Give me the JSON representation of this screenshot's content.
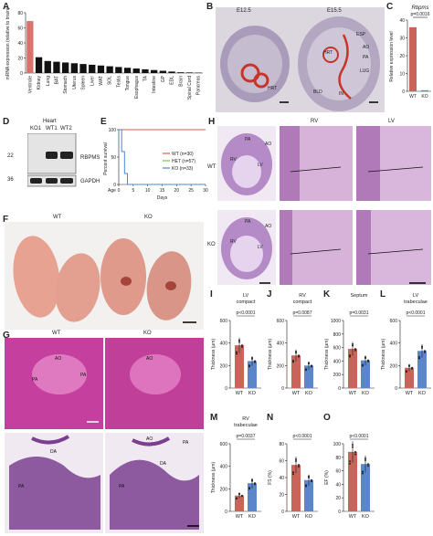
{
  "panels": {
    "A": "A",
    "B": "B",
    "C": "C",
    "D": "D",
    "E": "E",
    "F": "F",
    "G": "G",
    "H": "H",
    "I": "I",
    "J": "J",
    "K": "K",
    "L": "L",
    "M": "M",
    "N": "N",
    "O": "O"
  },
  "panelA": {
    "ylabel": "mRNA expression (relative to brain)",
    "yticks": [
      "0",
      "20",
      "40",
      "60",
      "80"
    ],
    "chart_data": {
      "type": "bar",
      "categories": [
        "Ventricle",
        "Kidney",
        "Lung",
        "BAT",
        "Stomach",
        "Uterus",
        "Spleen",
        "Liver",
        "WAT",
        "SOL",
        "Testis",
        "Tongue",
        "Esophagus",
        "TA",
        "Intestine",
        "GP",
        "EDL",
        "Brain",
        "Spinal Cord",
        "Pancreas"
      ],
      "values": [
        69,
        21,
        16,
        15,
        14,
        13,
        12,
        11,
        10,
        9,
        8,
        7,
        6,
        5,
        4,
        3,
        2,
        1,
        0.8,
        0.5
      ],
      "ylim": [
        0,
        80
      ],
      "highlight_color": "#d9726a",
      "bar_color": "#111111"
    }
  },
  "panelB": {
    "e125": "E12.5",
    "e155": "E15.5",
    "labels": [
      "ESP",
      "AO",
      "HRT",
      "PA",
      "LUG",
      "BLD",
      "IN",
      "HRT"
    ]
  },
  "panelC": {
    "title": "Rbpms",
    "pval": "p=0.0016",
    "ylabel": "Relative expression level",
    "yticks": [
      "0",
      "10",
      "20",
      "30",
      "40"
    ],
    "chart_data": {
      "type": "bar",
      "categories": [
        "WT",
        "KO"
      ],
      "values": [
        36,
        0.6
      ],
      "ylim": [
        0,
        40
      ]
    }
  },
  "panelD": {
    "header": "Heart",
    "lanes": [
      "KO1",
      "WT1",
      "WT2"
    ],
    "mw": [
      "22",
      "36"
    ],
    "bands": [
      "RBPMS",
      "GAPDH"
    ]
  },
  "panelE": {
    "ylabel": "Percent survival",
    "xlabel": "Days",
    "age": "Age",
    "xticks": [
      "0",
      "5",
      "10",
      "15",
      "20",
      "25",
      "30"
    ],
    "yticks": [
      "0",
      "50",
      "100"
    ],
    "legend": [
      "WT (n=30)",
      "HET (n=57)",
      "KO (n=33)"
    ],
    "chart_data": {
      "type": "line",
      "x_range": [
        0,
        30
      ],
      "ylim": [
        0,
        100
      ],
      "series": [
        {
          "name": "WT (n=30)",
          "color": "#e05a4a"
        },
        {
          "name": "HET (n=57)",
          "color": "#77c35a"
        },
        {
          "name": "KO (n=33)",
          "color": "#4b86d6"
        }
      ]
    }
  },
  "panelF": {
    "wt": "WT",
    "ko": "KO"
  },
  "panelG": {
    "wt": "WT",
    "ko": "KO",
    "labels": [
      "AO",
      "PA",
      "PA",
      "AO",
      "DA",
      "PA",
      "AO",
      "PA",
      "DA",
      "PA"
    ]
  },
  "panelH": {
    "rv": "RV",
    "lv": "LV",
    "wt": "WT",
    "ko": "KO",
    "labels": [
      "PA",
      "AO",
      "RV",
      "LV",
      "PA",
      "AO",
      "RV",
      "LV"
    ]
  },
  "bars": [
    {
      "id": "I",
      "title": "LV compact",
      "pval": "p<0.0001",
      "yticks": [
        "0",
        "200",
        "400",
        "600"
      ],
      "ylabel": "Thickness (μm)",
      "chart_data": {
        "type": "bar",
        "categories": [
          "WT",
          "KO"
        ],
        "values": [
          380,
          240
        ],
        "ylim": [
          0,
          600
        ]
      }
    },
    {
      "id": "J",
      "title": "RV compact",
      "pval": "p=0.0087",
      "yticks": [
        "0",
        "200",
        "400",
        "600"
      ],
      "ylabel": "Thickness (μm)",
      "chart_data": {
        "type": "bar",
        "categories": [
          "WT",
          "KO"
        ],
        "values": [
          290,
          200
        ],
        "ylim": [
          0,
          600
        ]
      }
    },
    {
      "id": "K",
      "title": "Septum",
      "pval": "p=0.0031",
      "yticks": [
        "0",
        "200",
        "400",
        "600",
        "800",
        "1000"
      ],
      "ylabel": "Thickness (μm)",
      "chart_data": {
        "type": "bar",
        "categories": [
          "WT",
          "KO"
        ],
        "values": [
          580,
          410
        ],
        "ylim": [
          0,
          1000
        ]
      }
    },
    {
      "id": "L",
      "title": "LV trabeculae",
      "pval": "p<0.0001",
      "yticks": [
        "0",
        "200",
        "400",
        "600"
      ],
      "ylabel": "Thickness (μm)",
      "chart_data": {
        "type": "bar",
        "categories": [
          "WT",
          "KO"
        ],
        "values": [
          180,
          330
        ],
        "ylim": [
          0,
          600
        ]
      }
    },
    {
      "id": "M",
      "title": "RV trabeculae",
      "pval": "p=0.0037",
      "yticks": [
        "0",
        "200",
        "400",
        "600"
      ],
      "ylabel": "Thickness (μm)",
      "chart_data": {
        "type": "bar",
        "categories": [
          "WT",
          "KO"
        ],
        "values": [
          140,
          250
        ],
        "ylim": [
          0,
          600
        ]
      }
    },
    {
      "id": "N",
      "title": "",
      "pval": "p<0.0001",
      "yticks": [
        "0",
        "20",
        "40",
        "60",
        "80"
      ],
      "ylabel": "FS (%)",
      "chart_data": {
        "type": "bar",
        "categories": [
          "WT",
          "KO"
        ],
        "values": [
          55,
          37
        ],
        "ylim": [
          0,
          80
        ]
      }
    },
    {
      "id": "O",
      "title": "",
      "pval": "p<0.0001",
      "yticks": [
        "0",
        "20",
        "40",
        "60",
        "80",
        "100"
      ],
      "ylabel": "EF (%)",
      "chart_data": {
        "type": "bar",
        "categories": [
          "WT",
          "KO"
        ],
        "values": [
          88,
          70
        ],
        "ylim": [
          0,
          100
        ]
      }
    }
  ],
  "colors": {
    "wt": "#c9645a",
    "ko": "#5b86c9",
    "he": "#b07ab8"
  }
}
